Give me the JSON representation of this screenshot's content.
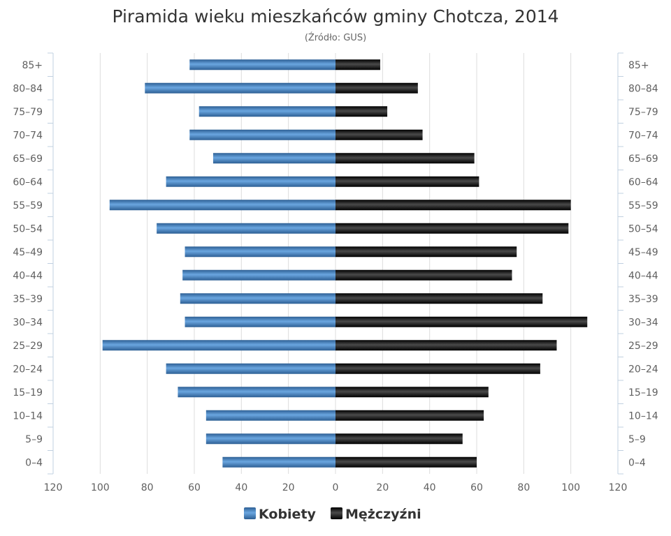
{
  "chart_data": {
    "type": "bar",
    "orientation": "horizontal-population-pyramid",
    "title": "Piramida wieku mieszkańców gminy Chotcza, 2014",
    "subtitle": "(Źródło: GUS)",
    "categories": [
      "85+",
      "80–84",
      "75–79",
      "70–74",
      "65–69",
      "60–64",
      "55–59",
      "50–54",
      "45–49",
      "40–44",
      "35–39",
      "30–34",
      "25–29",
      "20–24",
      "15–19",
      "10–14",
      "5–9",
      "0–4"
    ],
    "series": [
      {
        "name": "Kobiety",
        "color": "#3f7fc0",
        "values": [
          62,
          81,
          58,
          62,
          52,
          72,
          96,
          76,
          64,
          65,
          66,
          64,
          99,
          72,
          67,
          55,
          55,
          48
        ]
      },
      {
        "name": "Mężczyźni",
        "color": "#1a1a1a",
        "values": [
          19,
          35,
          22,
          37,
          59,
          61,
          100,
          99,
          77,
          75,
          88,
          107,
          94,
          87,
          65,
          63,
          54,
          60
        ]
      }
    ],
    "xlim": [
      -120,
      120
    ],
    "xticks": [
      "120",
      "100",
      "80",
      "60",
      "40",
      "20",
      "0",
      "20",
      "40",
      "60",
      "80",
      "100",
      "120"
    ],
    "grid": true,
    "legend_position": "bottom-center"
  }
}
